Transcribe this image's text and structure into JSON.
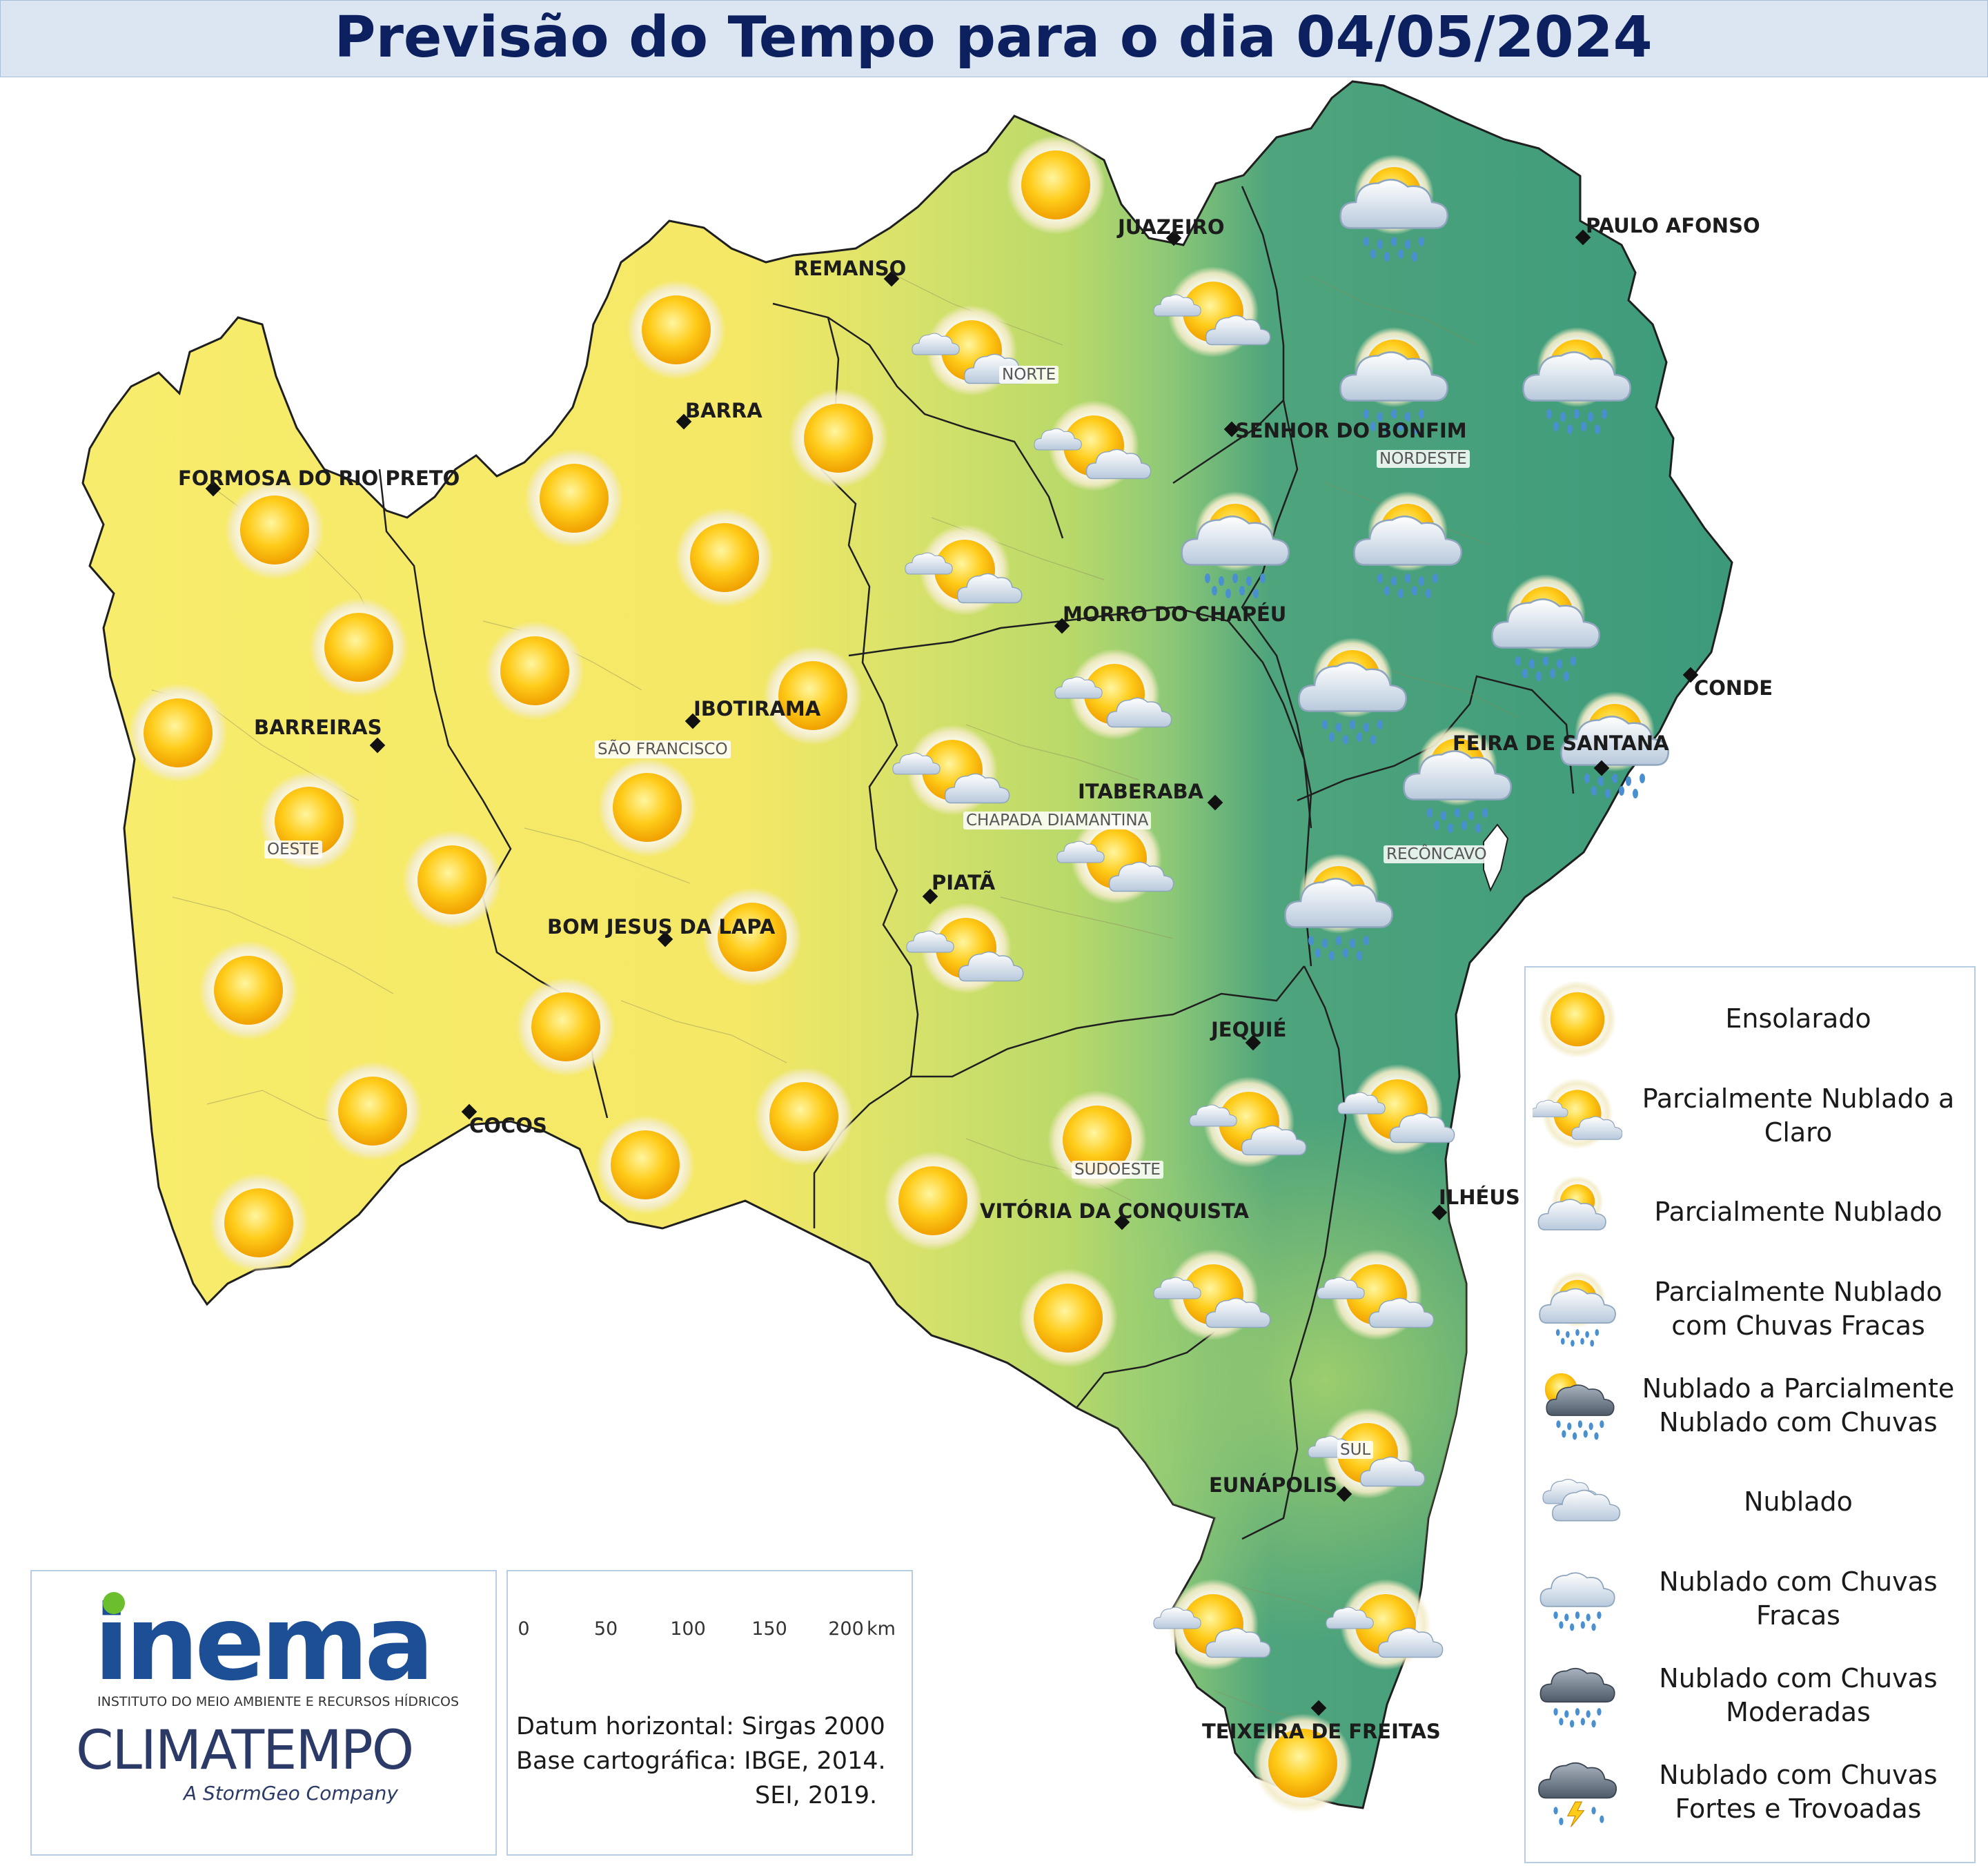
{
  "title": "Previsão do Tempo para o dia 04/05/2024",
  "legend": {
    "items": [
      {
        "icon": "sunny",
        "label": "Ensolarado"
      },
      {
        "icon": "partly-cloudy-clear",
        "label": "Parcialmente Nublado a Claro"
      },
      {
        "icon": "partly-cloudy",
        "label": "Parcialmente Nublado"
      },
      {
        "icon": "partly-cloudy-light-rain",
        "label": "Parcialmente Nublado com Chuvas Fracas"
      },
      {
        "icon": "cloudy-partly-rain",
        "label": "Nublado a Parcialmente Nublado com Chuvas"
      },
      {
        "icon": "cloudy",
        "label": "Nublado"
      },
      {
        "icon": "cloudy-light-rain",
        "label": "Nublado com Chuvas Fracas"
      },
      {
        "icon": "cloudy-moderate-rain",
        "label": "Nublado com Chuvas Moderadas"
      },
      {
        "icon": "cloudy-heavy-rain-thunder",
        "label": "Nublado com Chuvas Fortes e Trovoadas"
      }
    ]
  },
  "cities": {
    "juazeiro": "JUAZEIRO",
    "paulo_afonso": "PAULO AFONSO",
    "remanso": "REMANSO",
    "barra": "BARRA",
    "senhor_do_bonfim": "SENHOR DO BONFIM",
    "formosa": "FORMOSA DO RIO PRETO",
    "morro_do_chapeu": "MORRO DO CHAPÉU",
    "conde": "CONDE",
    "ibotirama": "IBOTIRAMA",
    "feira_de_santana": "FEIRA DE SANTANA",
    "barreiras": "BARREIRAS",
    "itaberaba": "ITABERABA",
    "piata": "PIATÃ",
    "bom_jesus_da_lapa": "BOM JESUS DA LAPA",
    "jequie": "JEQUIÉ",
    "cocos": "COCOS",
    "vitoria_da_conquista": "VITÓRIA DA CONQUISTA",
    "ilheus": "ILHÉUS",
    "eunapolis": "EUNÁPOLIS",
    "teixeira_de_freitas": "TEIXEIRA DE FREITAS"
  },
  "regions": {
    "norte": "NORTE",
    "nordeste": "NORDESTE",
    "sao_francisco": "SÃO FRANCISCO",
    "chapada": "CHAPADA DIAMANTINA",
    "oeste": "OESTE",
    "reconcavo": "RECÔNCAVO",
    "sudoeste": "SUDOESTE",
    "sul": "SUL"
  },
  "logos": {
    "inema": "inema",
    "inema_subtitle": "INSTITUTO DO MEIO AMBIENTE E RECURSOS HÍDRICOS",
    "climatempo": "CLIMATEMPO",
    "climatempo_subtitle": "A StormGeo Company"
  },
  "scale": {
    "ticks": [
      "0",
      "50",
      "100",
      "150",
      "200"
    ],
    "unit": "km"
  },
  "credits": {
    "datum": "Datum horizontal: Sirgas 2000",
    "base": "Base cartográfica: IBGE, 2014.",
    "sei": "SEI, 2019."
  },
  "colors": {
    "dry": "#f8eb6a",
    "mid": "#c3dd6a",
    "wet": "#3f9f7c",
    "title_text": "#0c1f5e",
    "title_bg": "#dbe6f2"
  }
}
